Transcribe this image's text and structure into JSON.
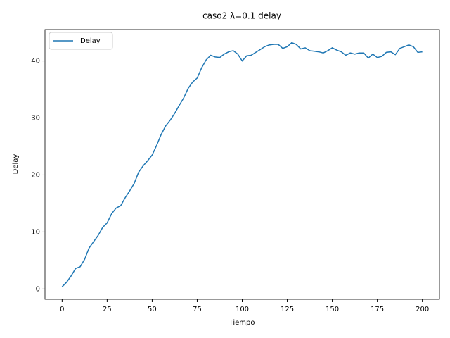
{
  "chart_data": {
    "type": "line",
    "title": "caso2 λ=0.1 delay",
    "x_label": "Tiempo",
    "y_label": "Delay",
    "x": [
      0,
      2.5,
      5,
      7.5,
      10,
      12.5,
      15,
      17.5,
      20,
      22.5,
      25,
      27.5,
      30,
      32.5,
      35,
      37.5,
      40,
      42.5,
      45,
      47.5,
      50,
      52.5,
      55,
      57.5,
      60,
      62.5,
      65,
      67.5,
      70,
      72.5,
      75,
      77.5,
      80,
      82.5,
      85,
      87.5,
      90,
      92.5,
      95,
      97.5,
      100,
      102.5,
      105,
      107.5,
      110,
      112.5,
      115,
      117.5,
      120,
      122.5,
      125,
      127.5,
      130,
      132.5,
      135,
      137.5,
      140,
      142.5,
      145,
      147.5,
      150,
      152.5,
      155,
      157.5,
      160,
      162.5,
      165,
      167.5,
      170,
      172.5,
      175,
      177.5,
      180,
      182.5,
      185,
      187.5,
      190,
      192.5,
      195,
      197.5,
      200
    ],
    "series": [
      {
        "name": "Delay",
        "color": "#1f77b4",
        "values": [
          0.4,
          1.2,
          2.3,
          3.6,
          3.9,
          5.2,
          7.2,
          8.3,
          9.4,
          10.8,
          11.6,
          13.2,
          14.2,
          14.6,
          16.0,
          17.2,
          18.5,
          20.5,
          21.6,
          22.5,
          23.5,
          25.2,
          27.1,
          28.6,
          29.6,
          30.8,
          32.2,
          33.5,
          35.2,
          36.3,
          37.0,
          38.8,
          40.2,
          41.0,
          40.7,
          40.6,
          41.2,
          41.6,
          41.8,
          41.2,
          40.0,
          40.9,
          41.0,
          41.5,
          42.0,
          42.5,
          42.8,
          42.9,
          42.9,
          42.2,
          42.5,
          43.2,
          42.9,
          42.1,
          42.3,
          41.8,
          41.7,
          41.6,
          41.4,
          41.8,
          42.3,
          41.9,
          41.6,
          41.0,
          41.4,
          41.2,
          41.4,
          41.4,
          40.5,
          41.2,
          40.6,
          40.8,
          41.5,
          41.6,
          41.1,
          42.2,
          42.5,
          42.8,
          42.5,
          41.5,
          41.6
        ]
      }
    ],
    "xlim": [
      -9.5,
      209.5
    ],
    "xticks": [
      0,
      25,
      50,
      75,
      100,
      125,
      150,
      175,
      200
    ],
    "ylim": [
      -1.8,
      45.5
    ],
    "yticks": [
      0,
      10,
      20,
      30,
      40
    ],
    "grid": false,
    "legend": "upper-left"
  }
}
